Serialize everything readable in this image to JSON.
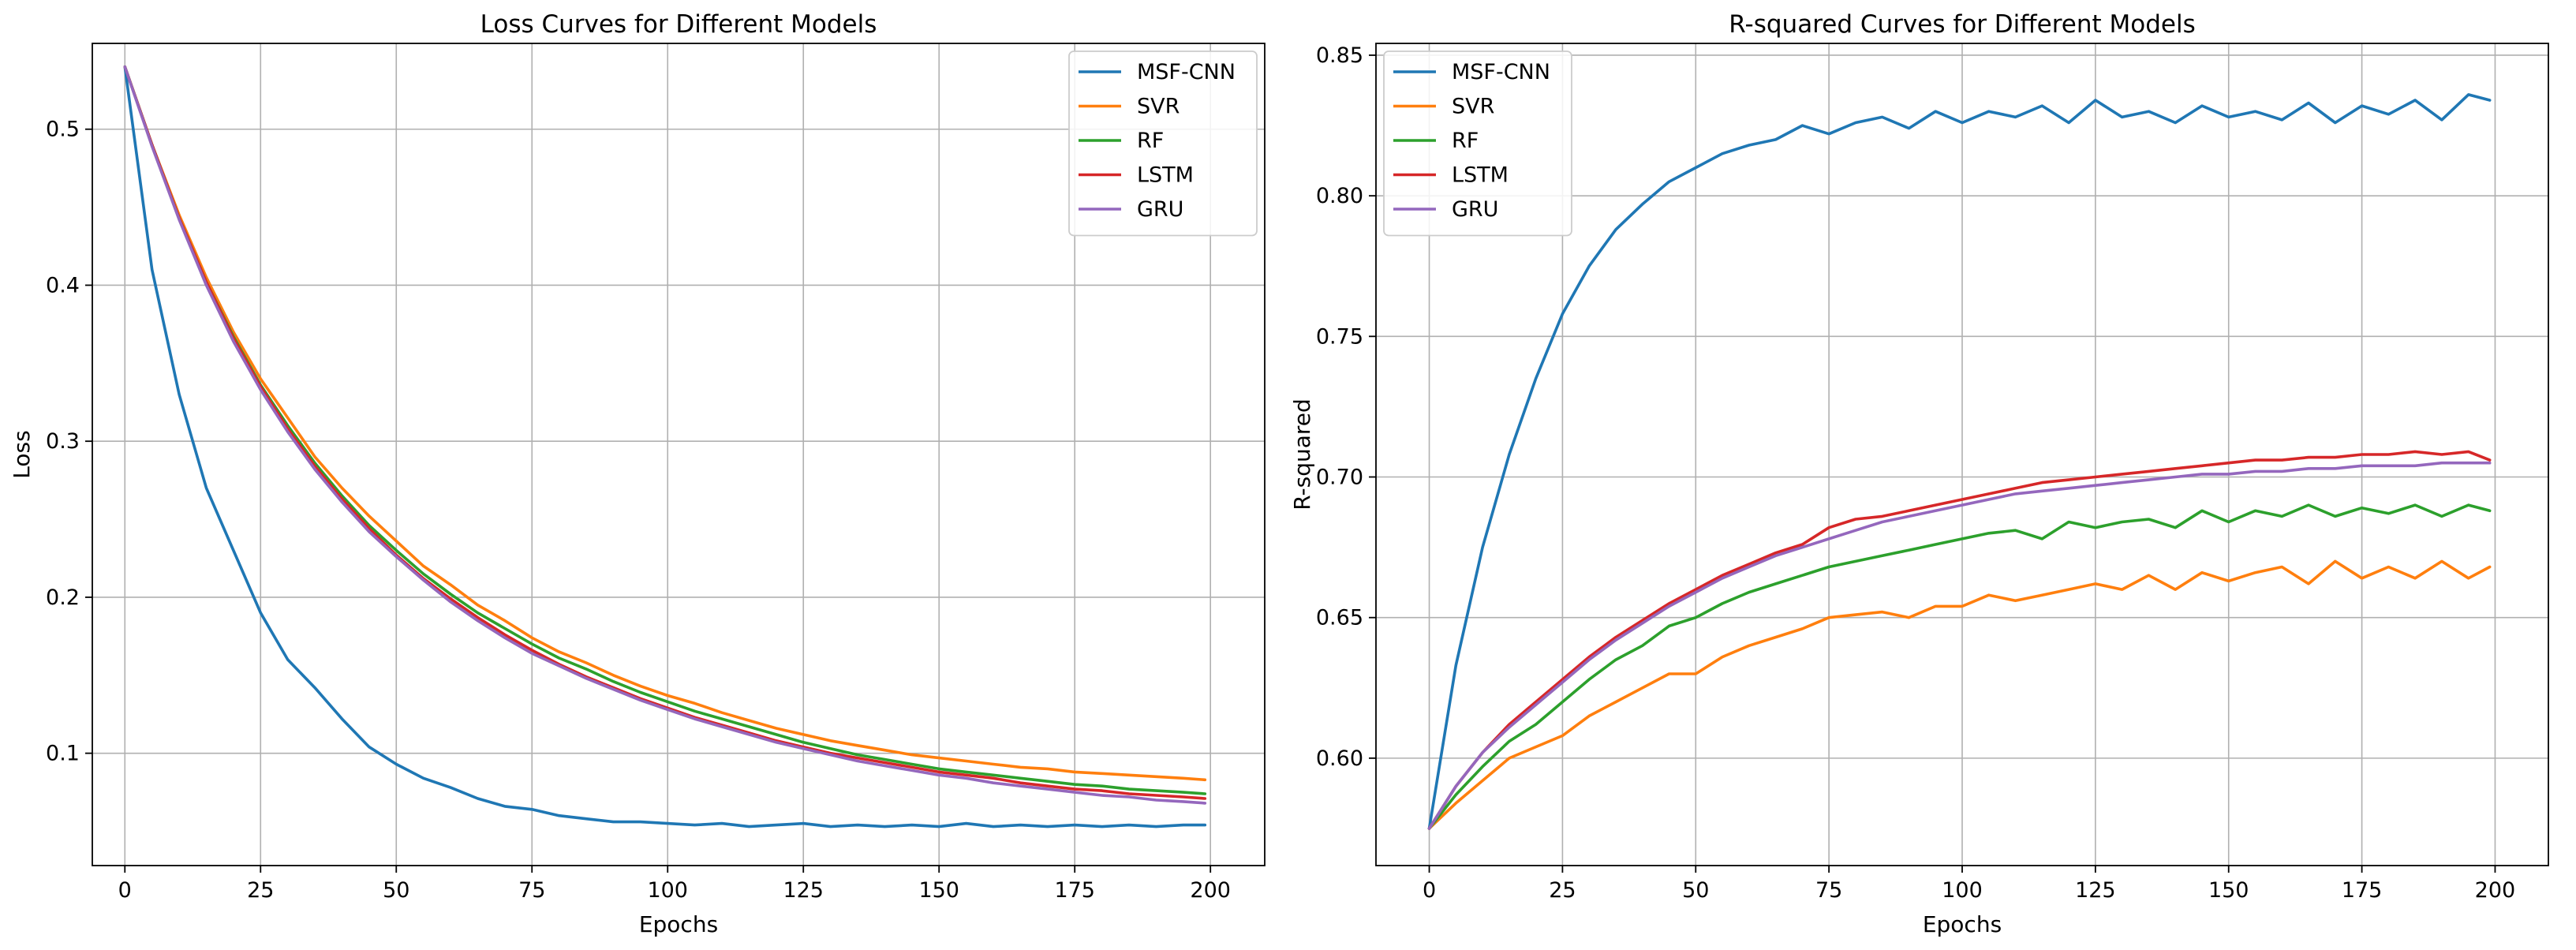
{
  "chart_data": [
    {
      "type": "line",
      "title": "Loss Curves for Different Models",
      "xlabel": "Epochs",
      "ylabel": "Loss",
      "xlim": [
        -6,
        210
      ],
      "ylim": [
        0.028,
        0.555
      ],
      "xticks": [
        0,
        25,
        50,
        75,
        100,
        125,
        150,
        175,
        200
      ],
      "xtick_labels": [
        "0",
        "25",
        "50",
        "75",
        "100",
        "125",
        "150",
        "175",
        "200"
      ],
      "yticks": [
        0.1,
        0.2,
        0.3,
        0.4,
        0.5
      ],
      "ytick_labels": [
        "0.1",
        "0.2",
        "0.3",
        "0.4",
        "0.5"
      ],
      "grid": true,
      "legend_position": "top-right",
      "series": [
        {
          "name": "MSF-CNN",
          "color": "#1f77b4",
          "x": [
            0,
            5,
            10,
            15,
            20,
            25,
            30,
            35,
            40,
            45,
            50,
            55,
            60,
            65,
            70,
            75,
            80,
            85,
            90,
            95,
            100,
            105,
            110,
            115,
            120,
            125,
            130,
            135,
            140,
            145,
            150,
            155,
            160,
            165,
            170,
            175,
            180,
            185,
            190,
            195,
            199
          ],
          "values": [
            0.54,
            0.41,
            0.33,
            0.27,
            0.23,
            0.19,
            0.16,
            0.142,
            0.122,
            0.104,
            0.093,
            0.084,
            0.078,
            0.071,
            0.066,
            0.064,
            0.06,
            0.058,
            0.056,
            0.056,
            0.055,
            0.054,
            0.055,
            0.053,
            0.054,
            0.055,
            0.053,
            0.054,
            0.053,
            0.054,
            0.053,
            0.055,
            0.053,
            0.054,
            0.053,
            0.054,
            0.053,
            0.054,
            0.053,
            0.054,
            0.054
          ]
        },
        {
          "name": "SVR",
          "color": "#ff7f0e",
          "x": [
            0,
            5,
            10,
            15,
            20,
            25,
            30,
            35,
            40,
            45,
            50,
            55,
            60,
            65,
            70,
            75,
            80,
            85,
            90,
            95,
            100,
            105,
            110,
            115,
            120,
            125,
            130,
            135,
            140,
            145,
            150,
            155,
            160,
            165,
            170,
            175,
            180,
            185,
            190,
            195,
            199
          ],
          "values": [
            0.54,
            0.49,
            0.445,
            0.405,
            0.37,
            0.34,
            0.315,
            0.29,
            0.27,
            0.252,
            0.236,
            0.22,
            0.208,
            0.195,
            0.185,
            0.174,
            0.165,
            0.158,
            0.15,
            0.143,
            0.137,
            0.132,
            0.126,
            0.121,
            0.116,
            0.112,
            0.108,
            0.105,
            0.102,
            0.099,
            0.097,
            0.095,
            0.093,
            0.091,
            0.09,
            0.088,
            0.087,
            0.086,
            0.085,
            0.084,
            0.083
          ]
        },
        {
          "name": "RF",
          "color": "#2ca02c",
          "x": [
            0,
            5,
            10,
            15,
            20,
            25,
            30,
            35,
            40,
            45,
            50,
            55,
            60,
            65,
            70,
            75,
            80,
            85,
            90,
            95,
            100,
            105,
            110,
            115,
            120,
            125,
            130,
            135,
            140,
            145,
            150,
            155,
            160,
            165,
            170,
            175,
            180,
            185,
            190,
            195,
            199
          ],
          "values": [
            0.54,
            0.49,
            0.443,
            0.402,
            0.367,
            0.336,
            0.31,
            0.286,
            0.265,
            0.246,
            0.23,
            0.215,
            0.202,
            0.19,
            0.18,
            0.17,
            0.161,
            0.154,
            0.146,
            0.139,
            0.133,
            0.127,
            0.122,
            0.117,
            0.112,
            0.107,
            0.103,
            0.099,
            0.096,
            0.093,
            0.09,
            0.088,
            0.086,
            0.084,
            0.082,
            0.08,
            0.079,
            0.077,
            0.076,
            0.075,
            0.074
          ]
        },
        {
          "name": "LSTM",
          "color": "#d62728",
          "x": [
            0,
            5,
            10,
            15,
            20,
            25,
            30,
            35,
            40,
            45,
            50,
            55,
            60,
            65,
            70,
            75,
            80,
            85,
            90,
            95,
            100,
            105,
            110,
            115,
            120,
            125,
            130,
            135,
            140,
            145,
            150,
            155,
            160,
            165,
            170,
            175,
            180,
            185,
            190,
            195,
            199
          ],
          "values": [
            0.54,
            0.49,
            0.443,
            0.402,
            0.366,
            0.335,
            0.308,
            0.284,
            0.263,
            0.244,
            0.227,
            0.212,
            0.199,
            0.187,
            0.176,
            0.166,
            0.157,
            0.149,
            0.142,
            0.135,
            0.129,
            0.123,
            0.118,
            0.113,
            0.108,
            0.104,
            0.1,
            0.097,
            0.094,
            0.091,
            0.088,
            0.086,
            0.084,
            0.081,
            0.079,
            0.077,
            0.076,
            0.074,
            0.073,
            0.072,
            0.071
          ]
        },
        {
          "name": "GRU",
          "color": "#9467bd",
          "x": [
            0,
            5,
            10,
            15,
            20,
            25,
            30,
            35,
            40,
            45,
            50,
            55,
            60,
            65,
            70,
            75,
            80,
            85,
            90,
            95,
            100,
            105,
            110,
            115,
            120,
            125,
            130,
            135,
            140,
            145,
            150,
            155,
            160,
            165,
            170,
            175,
            180,
            185,
            190,
            195,
            199
          ],
          "values": [
            0.54,
            0.489,
            0.442,
            0.4,
            0.364,
            0.333,
            0.306,
            0.282,
            0.261,
            0.242,
            0.226,
            0.211,
            0.197,
            0.185,
            0.174,
            0.164,
            0.156,
            0.148,
            0.141,
            0.134,
            0.128,
            0.122,
            0.117,
            0.112,
            0.107,
            0.103,
            0.099,
            0.095,
            0.092,
            0.089,
            0.086,
            0.084,
            0.081,
            0.079,
            0.077,
            0.075,
            0.073,
            0.072,
            0.07,
            0.069,
            0.068
          ]
        }
      ]
    },
    {
      "type": "line",
      "title": "R-squared Curves for Different Models",
      "xlabel": "Epochs",
      "ylabel": "R-squared",
      "xlim": [
        -10,
        210
      ],
      "ylim": [
        0.5618,
        0.8542
      ],
      "xticks": [
        0,
        25,
        50,
        75,
        100,
        125,
        150,
        175,
        200
      ],
      "xtick_labels": [
        "0",
        "25",
        "50",
        "75",
        "100",
        "125",
        "150",
        "175",
        "200"
      ],
      "yticks": [
        0.6,
        0.65,
        0.7,
        0.75,
        0.8,
        0.85
      ],
      "ytick_labels": [
        "0.60",
        "0.65",
        "0.70",
        "0.75",
        "0.80",
        "0.85"
      ],
      "grid": true,
      "legend_position": "top-left",
      "series": [
        {
          "name": "MSF-CNN",
          "color": "#1f77b4",
          "x": [
            0,
            5,
            10,
            15,
            20,
            25,
            30,
            35,
            40,
            45,
            50,
            55,
            60,
            65,
            70,
            75,
            80,
            85,
            90,
            95,
            100,
            105,
            110,
            115,
            120,
            125,
            130,
            135,
            140,
            145,
            150,
            155,
            160,
            165,
            170,
            175,
            180,
            185,
            190,
            195,
            199
          ],
          "values": [
            0.575,
            0.633,
            0.675,
            0.708,
            0.735,
            0.758,
            0.775,
            0.788,
            0.797,
            0.805,
            0.81,
            0.815,
            0.818,
            0.82,
            0.825,
            0.822,
            0.826,
            0.828,
            0.824,
            0.83,
            0.826,
            0.83,
            0.828,
            0.832,
            0.826,
            0.834,
            0.828,
            0.83,
            0.826,
            0.832,
            0.828,
            0.83,
            0.827,
            0.833,
            0.826,
            0.832,
            0.829,
            0.834,
            0.827,
            0.836,
            0.834
          ]
        },
        {
          "name": "SVR",
          "color": "#ff7f0e",
          "x": [
            0,
            5,
            10,
            15,
            20,
            25,
            30,
            35,
            40,
            45,
            50,
            55,
            60,
            65,
            70,
            75,
            80,
            85,
            90,
            95,
            100,
            105,
            110,
            115,
            120,
            125,
            130,
            135,
            140,
            145,
            150,
            155,
            160,
            165,
            170,
            175,
            180,
            185,
            190,
            195,
            199
          ],
          "values": [
            0.575,
            0.584,
            0.592,
            0.6,
            0.604,
            0.608,
            0.615,
            0.62,
            0.625,
            0.63,
            0.63,
            0.636,
            0.64,
            0.643,
            0.646,
            0.65,
            0.651,
            0.652,
            0.65,
            0.654,
            0.654,
            0.658,
            0.656,
            0.658,
            0.66,
            0.662,
            0.66,
            0.665,
            0.66,
            0.666,
            0.663,
            0.666,
            0.668,
            0.662,
            0.67,
            0.664,
            0.668,
            0.664,
            0.67,
            0.664,
            0.668
          ]
        },
        {
          "name": "RF",
          "color": "#2ca02c",
          "x": [
            0,
            5,
            10,
            15,
            20,
            25,
            30,
            35,
            40,
            45,
            50,
            55,
            60,
            65,
            70,
            75,
            80,
            85,
            90,
            95,
            100,
            105,
            110,
            115,
            120,
            125,
            130,
            135,
            140,
            145,
            150,
            155,
            160,
            165,
            170,
            175,
            180,
            185,
            190,
            195,
            199
          ],
          "values": [
            0.575,
            0.587,
            0.597,
            0.606,
            0.612,
            0.62,
            0.628,
            0.635,
            0.64,
            0.647,
            0.65,
            0.655,
            0.659,
            0.662,
            0.665,
            0.668,
            0.67,
            0.672,
            0.674,
            0.676,
            0.678,
            0.68,
            0.681,
            0.678,
            0.684,
            0.682,
            0.684,
            0.685,
            0.682,
            0.688,
            0.684,
            0.688,
            0.686,
            0.69,
            0.686,
            0.689,
            0.687,
            0.69,
            0.686,
            0.69,
            0.688
          ]
        },
        {
          "name": "LSTM",
          "color": "#d62728",
          "x": [
            0,
            5,
            10,
            15,
            20,
            25,
            30,
            35,
            40,
            45,
            50,
            55,
            60,
            65,
            70,
            75,
            80,
            85,
            90,
            95,
            100,
            105,
            110,
            115,
            120,
            125,
            130,
            135,
            140,
            145,
            150,
            155,
            160,
            165,
            170,
            175,
            180,
            185,
            190,
            195,
            199
          ],
          "values": [
            0.575,
            0.59,
            0.602,
            0.612,
            0.62,
            0.628,
            0.636,
            0.643,
            0.649,
            0.655,
            0.66,
            0.665,
            0.669,
            0.673,
            0.676,
            0.682,
            0.685,
            0.686,
            0.688,
            0.69,
            0.692,
            0.694,
            0.696,
            0.698,
            0.699,
            0.7,
            0.701,
            0.702,
            0.703,
            0.704,
            0.705,
            0.706,
            0.706,
            0.707,
            0.707,
            0.708,
            0.708,
            0.709,
            0.708,
            0.709,
            0.706
          ]
        },
        {
          "name": "GRU",
          "color": "#9467bd",
          "x": [
            0,
            5,
            10,
            15,
            20,
            25,
            30,
            35,
            40,
            45,
            50,
            55,
            60,
            65,
            70,
            75,
            80,
            85,
            90,
            95,
            100,
            105,
            110,
            115,
            120,
            125,
            130,
            135,
            140,
            145,
            150,
            155,
            160,
            165,
            170,
            175,
            180,
            185,
            190,
            195,
            199
          ],
          "values": [
            0.575,
            0.59,
            0.602,
            0.611,
            0.619,
            0.627,
            0.635,
            0.642,
            0.648,
            0.654,
            0.659,
            0.664,
            0.668,
            0.672,
            0.675,
            0.678,
            0.681,
            0.684,
            0.686,
            0.688,
            0.69,
            0.692,
            0.694,
            0.695,
            0.696,
            0.697,
            0.698,
            0.699,
            0.7,
            0.701,
            0.701,
            0.702,
            0.702,
            0.703,
            0.703,
            0.704,
            0.704,
            0.704,
            0.705,
            0.705,
            0.705
          ]
        }
      ]
    }
  ]
}
